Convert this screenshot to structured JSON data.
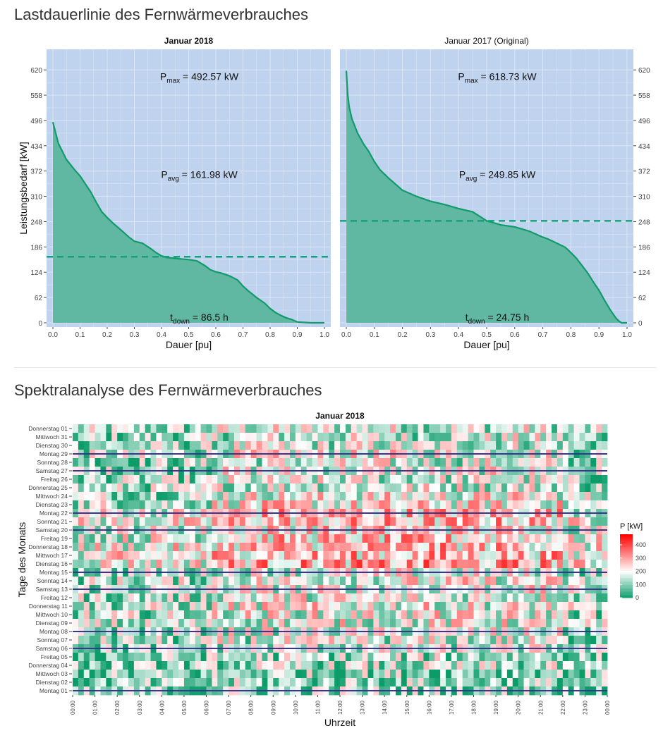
{
  "sections": {
    "ldc_title": "Lastdauerlinie des Fernwärmeverbrauches",
    "heat_title": "Spektralanalyse des Fernwärmeverbrauches"
  },
  "colors": {
    "panel_bg": "#bfd2ee",
    "grid": "#dce6f6",
    "fill": "#5bb59d",
    "line": "#119b6b",
    "dash": "#17a079",
    "heat_low": "#0b9c6a",
    "heat_mid": "#ffffff",
    "heat_high": "#ff0000",
    "week_line": "#3a3690"
  },
  "chart_data": [
    {
      "type": "area",
      "facets": [
        {
          "title": "Januar 2018",
          "title_bold": true,
          "pmax_label": "P",
          "pmax_sub": "max",
          "pmax_text": " = 492.57 kW",
          "pavg_label": "P",
          "pavg_sub": "avg",
          "pavg_text": " = 161.98 kW",
          "tdown_label": "t",
          "tdown_sub": "down",
          "tdown_text": " = 86.5 h",
          "pmax": 492.57,
          "pavg": 161.98,
          "x": [
            0,
            0.02,
            0.05,
            0.08,
            0.1,
            0.12,
            0.14,
            0.16,
            0.18,
            0.2,
            0.22,
            0.25,
            0.28,
            0.3,
            0.33,
            0.36,
            0.38,
            0.4,
            0.42,
            0.45,
            0.48,
            0.5,
            0.53,
            0.56,
            0.58,
            0.6,
            0.62,
            0.65,
            0.68,
            0.7,
            0.72,
            0.75,
            0.78,
            0.8,
            0.82,
            0.84,
            0.86,
            0.88,
            0.9,
            0.95,
            1.0
          ],
          "y": [
            492,
            440,
            400,
            375,
            360,
            340,
            320,
            295,
            272,
            258,
            245,
            228,
            210,
            200,
            195,
            182,
            172,
            164,
            160,
            158,
            156,
            155,
            152,
            140,
            130,
            125,
            122,
            115,
            105,
            90,
            78,
            62,
            48,
            35,
            25,
            18,
            12,
            8,
            2,
            0,
            0
          ]
        },
        {
          "title": "Januar 2017 (Original)",
          "title_bold": false,
          "pmax_label": "P",
          "pmax_sub": "max",
          "pmax_text": " = 618.73 kW",
          "pavg_label": "P",
          "pavg_sub": "avg",
          "pavg_text": " = 249.85 kW",
          "tdown_label": "t",
          "tdown_sub": "down",
          "tdown_text": " = 24.75 h",
          "pmax": 618.73,
          "pavg": 249.85,
          "x": [
            0,
            0.005,
            0.01,
            0.02,
            0.04,
            0.06,
            0.08,
            0.1,
            0.12,
            0.15,
            0.18,
            0.2,
            0.25,
            0.3,
            0.35,
            0.4,
            0.45,
            0.5,
            0.55,
            0.6,
            0.65,
            0.7,
            0.72,
            0.75,
            0.78,
            0.8,
            0.82,
            0.84,
            0.86,
            0.88,
            0.9,
            0.92,
            0.94,
            0.96,
            0.97,
            0.98,
            1.0
          ],
          "y": [
            618,
            560,
            530,
            500,
            465,
            440,
            420,
            395,
            375,
            355,
            337,
            325,
            310,
            298,
            290,
            280,
            272,
            250,
            240,
            235,
            225,
            210,
            205,
            195,
            185,
            172,
            158,
            140,
            122,
            100,
            80,
            55,
            32,
            12,
            5,
            0,
            0
          ]
        }
      ],
      "xlabel": "Dauer [pu]",
      "ylabel": "Leistungsbedarf  [kW]",
      "x_ticks": [
        "0.0",
        "0.1",
        "0.2",
        "0.3",
        "0.4",
        "0.5",
        "0.6",
        "0.7",
        "0.8",
        "0.9",
        "1.0"
      ],
      "y_ticks": [
        "0",
        "62",
        "124",
        "186",
        "248",
        "310",
        "372",
        "434",
        "496",
        "558",
        "620"
      ],
      "xlim": [
        0,
        1
      ],
      "ylim": [
        0,
        620
      ]
    },
    {
      "type": "heatmap",
      "title": "Januar 2018",
      "xlabel": "Uhrzeit",
      "ylabel": "Tage des Monats",
      "x_ticks": [
        "00:00",
        "01:00",
        "02:00",
        "03:00",
        "04:00",
        "05:00",
        "06:00",
        "07:00",
        "08:00",
        "09:00",
        "10:00",
        "11:00",
        "12:00",
        "13:00",
        "14:00",
        "15:00",
        "16:00",
        "17:00",
        "18:00",
        "19:00",
        "20:00",
        "21:00",
        "22:00",
        "23:00",
        "00:00"
      ],
      "y_ticks_top_to_bottom": [
        "Donnerstag 01",
        "Mittwoch 31",
        "Dienstag 30",
        "Montag 29",
        "Sonntag 28",
        "Samstag 27",
        "Freitag 26",
        "Donnerstag 25",
        "Mittwoch 24",
        "Dienstag 23",
        "Montag 22",
        "Sonntag 21",
        "Samstag 20",
        "Freitag 19",
        "Donnerstag 18",
        "Mittwoch 17",
        "Dienstag 16",
        "Montag 15",
        "Sonntag 14",
        "Samstag 13",
        "Freitag 12",
        "Donnerstag 11",
        "Mittwoch 10",
        "Dienstag 09",
        "Montag 08",
        "Sonntag 07",
        "Samstag 06",
        "Freitag 05",
        "Donnerstag 04",
        "Mittwoch 03",
        "Dienstag 02",
        "Montag 01"
      ],
      "week_separators": [
        "Montag 29",
        "Samstag 27",
        "Montag 22",
        "Samstag 20",
        "Montag 15",
        "Samstag 13",
        "Montag 08",
        "Samstag 06",
        "Montag 01"
      ],
      "hours": 24,
      "cells_per_hour": 4,
      "legend_title": "P [kW]",
      "legend_ticks": [
        "400",
        "300",
        "200",
        "100",
        "0"
      ],
      "zlim": [
        0,
        480
      ],
      "mean_by_day_top_to_bottom": [
        150,
        140,
        145,
        170,
        150,
        160,
        145,
        160,
        180,
        190,
        240,
        230,
        210,
        220,
        230,
        235,
        250,
        160,
        175,
        170,
        170,
        175,
        170,
        165,
        150,
        145,
        140,
        120,
        115,
        110,
        105,
        110
      ]
    }
  ]
}
